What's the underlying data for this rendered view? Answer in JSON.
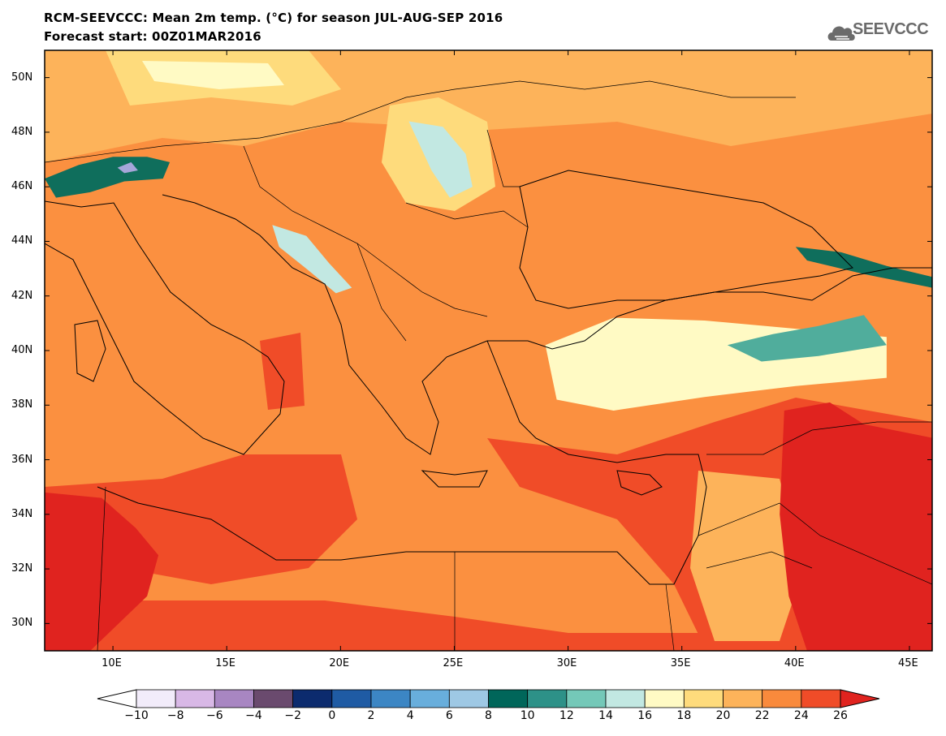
{
  "title": {
    "line1": "RCM-SEEVCCC: Mean 2m temp. (°C) for season JUL-AUG-SEP 2016",
    "line2": "Forecast start: 00Z01MAR2016"
  },
  "logo": {
    "text": "SEEVCCC",
    "icon": "cloud-icon"
  },
  "map": {
    "variable": "Mean 2m temp. (°C)",
    "lon_range": [
      7,
      46
    ],
    "lat_range": [
      29,
      51
    ],
    "lat_ticks": [
      {
        "value": 50,
        "label": "50N"
      },
      {
        "value": 48,
        "label": "48N"
      },
      {
        "value": 46,
        "label": "46N"
      },
      {
        "value": 44,
        "label": "44N"
      },
      {
        "value": 42,
        "label": "42N"
      },
      {
        "value": 40,
        "label": "40N"
      },
      {
        "value": 38,
        "label": "38N"
      },
      {
        "value": 36,
        "label": "36N"
      },
      {
        "value": 34,
        "label": "34N"
      },
      {
        "value": 32,
        "label": "32N"
      },
      {
        "value": 30,
        "label": "30N"
      }
    ],
    "lon_ticks": [
      {
        "value": 10,
        "label": "10E"
      },
      {
        "value": 15,
        "label": "15E"
      },
      {
        "value": 20,
        "label": "20E"
      },
      {
        "value": 25,
        "label": "25E"
      },
      {
        "value": 30,
        "label": "30E"
      },
      {
        "value": 35,
        "label": "35E"
      },
      {
        "value": 40,
        "label": "40E"
      },
      {
        "value": 45,
        "label": "45E"
      }
    ],
    "regions": [
      {
        "name": "alps-cold-band",
        "color": "#0f6e5c",
        "points": [
          [
            7,
            46.3
          ],
          [
            8.5,
            46.8
          ],
          [
            10,
            47.1
          ],
          [
            11.5,
            47.1
          ],
          [
            12.5,
            46.9
          ],
          [
            12.2,
            46.3
          ],
          [
            10.5,
            46.2
          ],
          [
            9,
            45.8
          ],
          [
            7.5,
            45.6
          ]
        ]
      },
      {
        "name": "alps-peak",
        "color": "#a6a6d9",
        "points": [
          [
            10.2,
            46.7
          ],
          [
            10.8,
            46.9
          ],
          [
            11.1,
            46.6
          ],
          [
            10.5,
            46.5
          ]
        ]
      },
      {
        "name": "carpathians-cool",
        "color": "#c2e8e2",
        "points": [
          [
            23,
            48.4
          ],
          [
            24.5,
            48.2
          ],
          [
            25.5,
            47.2
          ],
          [
            25.8,
            46
          ],
          [
            24.8,
            45.6
          ],
          [
            24,
            46.6
          ]
        ]
      },
      {
        "name": "dinarides-cool",
        "color": "#c2e8e2",
        "points": [
          [
            17,
            44.6
          ],
          [
            18.5,
            44.2
          ],
          [
            19.5,
            43.2
          ],
          [
            20.5,
            42.3
          ],
          [
            19.8,
            42.1
          ],
          [
            18.5,
            43
          ],
          [
            17.3,
            43.8
          ]
        ]
      },
      {
        "name": "anatolia-cool",
        "color": "#fffac4",
        "points": [
          [
            29,
            40.2
          ],
          [
            32,
            41.2
          ],
          [
            36,
            41.1
          ],
          [
            40,
            40.8
          ],
          [
            44,
            40.5
          ],
          [
            44,
            39
          ],
          [
            40,
            38.7
          ],
          [
            36,
            38.3
          ],
          [
            32,
            37.8
          ],
          [
            29.5,
            38.2
          ]
        ]
      },
      {
        "name": "anatolia-cold",
        "color": "#50ad9c",
        "points": [
          [
            37,
            40.2
          ],
          [
            39,
            40.6
          ],
          [
            41,
            40.9
          ],
          [
            43,
            41.3
          ],
          [
            44,
            40.2
          ],
          [
            41,
            39.8
          ],
          [
            38.5,
            39.6
          ]
        ]
      },
      {
        "name": "caucasus-cold",
        "color": "#0f6e5c",
        "points": [
          [
            40,
            43.8
          ],
          [
            42,
            43.6
          ],
          [
            44,
            43.1
          ],
          [
            46,
            42.7
          ],
          [
            46,
            42.3
          ],
          [
            43,
            42.8
          ],
          [
            40.5,
            43.3
          ]
        ]
      },
      {
        "name": "sahara-hot",
        "color": "#e0231f",
        "points": [
          [
            7,
            34.8
          ],
          [
            9.5,
            34.6
          ],
          [
            11,
            33.5
          ],
          [
            12,
            32.5
          ],
          [
            11.5,
            31
          ],
          [
            10,
            29.8
          ],
          [
            9,
            29
          ],
          [
            7,
            29
          ]
        ]
      },
      {
        "name": "mesopotamia-hot",
        "color": "#e0231f",
        "points": [
          [
            39.5,
            37.8
          ],
          [
            41.5,
            38.1
          ],
          [
            43,
            37.3
          ],
          [
            46,
            36.8
          ],
          [
            46,
            29
          ],
          [
            40.5,
            29
          ],
          [
            39.7,
            31
          ],
          [
            39.3,
            34
          ]
        ]
      }
    ]
  },
  "colorbar": {
    "labels": [
      "-10",
      "-8",
      "-6",
      "-4",
      "-2",
      "0",
      "2",
      "4",
      "6",
      "8",
      "10",
      "12",
      "14",
      "16",
      "18",
      "20",
      "22",
      "24",
      "26"
    ],
    "colors": [
      "#f2ecfa",
      "#d8b8e6",
      "#a886c2",
      "#6a4a6e",
      "#0c2b6e",
      "#1f5ba4",
      "#3c86c4",
      "#68aedc",
      "#9ec8e4",
      "#00665a",
      "#2d9188",
      "#74c8b8",
      "#c2e8e2",
      "#fffac4",
      "#fedb7c",
      "#fdb35a",
      "#f98a3c",
      "#f04c28"
    ],
    "under_color": "#ffffff",
    "over_color": "#e0231f"
  },
  "background": {
    "land_color": "#fb9040",
    "sea_color": "#fb9040",
    "north_color": "#fdb35a"
  }
}
